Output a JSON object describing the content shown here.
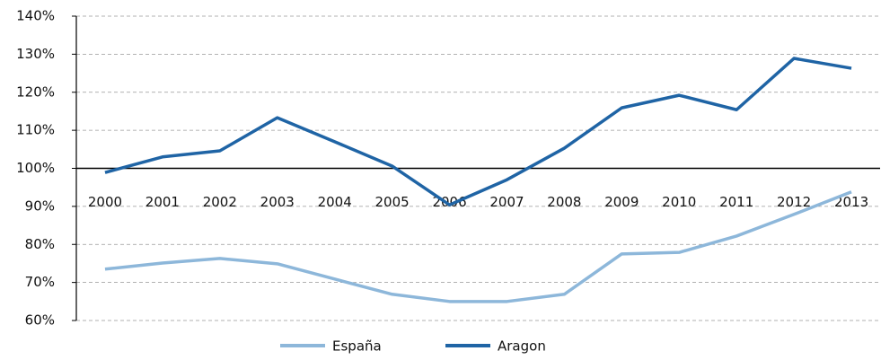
{
  "chart_data": {
    "type": "line",
    "categories": [
      "2000",
      "2001",
      "2002",
      "2003",
      "2004",
      "2005",
      "2006",
      "2007",
      "2008",
      "2009",
      "2010",
      "2011",
      "2012",
      "2013"
    ],
    "series": [
      {
        "name": "España",
        "color": "#8db7da",
        "values": [
          73.5,
          75.1,
          76.3,
          74.9,
          70.9,
          66.9,
          65,
          65,
          66.9,
          77.5,
          77.9,
          82.2,
          87.9,
          93.8
        ]
      },
      {
        "name": "Aragon",
        "color": "#1f64a5",
        "values": [
          98.9,
          103,
          104.6,
          113.3,
          107,
          100.6,
          90.4,
          97,
          105.3,
          115.9,
          119.2,
          115.4,
          128.9,
          126.3
        ]
      }
    ],
    "ylim": [
      60,
      140
    ],
    "yticks": [
      {
        "value": 60,
        "label": "60%"
      },
      {
        "value": 70,
        "label": "70%"
      },
      {
        "value": 80,
        "label": "80%"
      },
      {
        "value": 90,
        "label": "90%"
      },
      {
        "value": 100,
        "label": "100%"
      },
      {
        "value": 110,
        "label": "110%"
      },
      {
        "value": 120,
        "label": "120%"
      },
      {
        "value": 130,
        "label": "130%"
      },
      {
        "value": 140,
        "label": "140%"
      }
    ],
    "x_axis_crosses": 100,
    "grid": true,
    "legend": "bottom"
  }
}
